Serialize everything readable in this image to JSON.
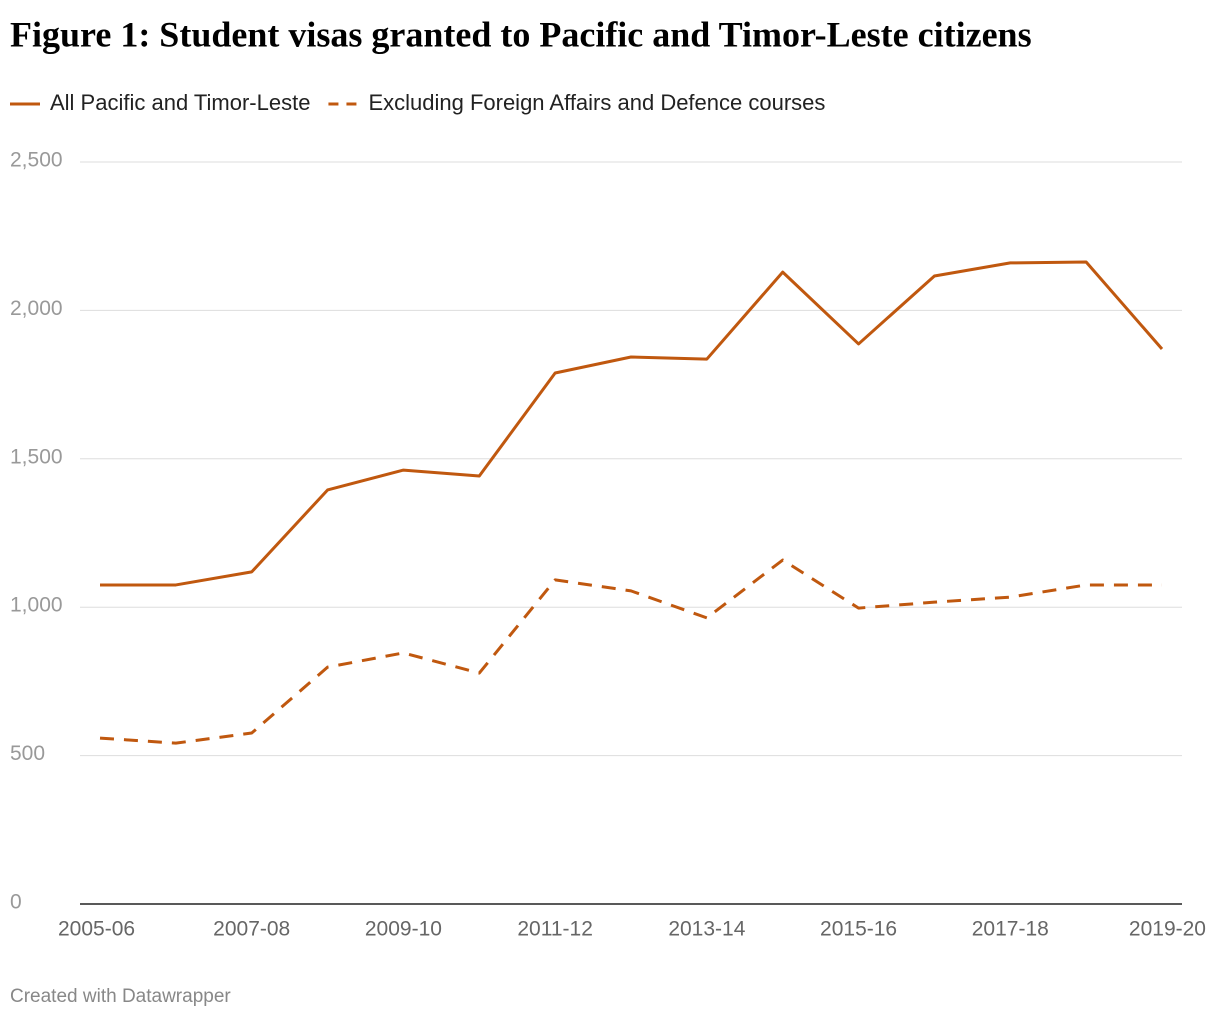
{
  "chart_data": {
    "type": "line",
    "title": "Figure 1: Student visas granted to Pacific and Timor-Leste citizens",
    "credit": "Created with Datawrapper",
    "categories": [
      "2005-06",
      null,
      "2007-08",
      null,
      "2009-10",
      null,
      "2011-12",
      null,
      "2013-14",
      null,
      "2015-16",
      null,
      "2017-18",
      null,
      "2019-20"
    ],
    "series": [
      {
        "name": "All Pacific and Timor-Leste",
        "color": "#c0580f",
        "line_style": "solid",
        "values": [
          1075,
          1075,
          1119,
          1395,
          1462,
          1442,
          1789,
          1843,
          1836,
          2129,
          1887,
          2116,
          2160,
          2163,
          1870
        ]
      },
      {
        "name": "Excluding Foreign Affairs and Defence courses",
        "color": "#c0580f",
        "line_style": "dashed",
        "values": [
          559,
          542,
          576,
          798,
          846,
          778,
          1092,
          1055,
          964,
          1159,
          997,
          1017,
          1034,
          1075,
          1075
        ]
      }
    ],
    "ylim": [
      0,
      2500
    ],
    "yticks": [
      0,
      500,
      {
        "value": 1000,
        "label": "1,000"
      },
      {
        "value": 1500,
        "label": "1,500"
      },
      {
        "value": 2000,
        "label": "2,000"
      },
      {
        "value": 2500,
        "label": "2,500"
      }
    ],
    "grid": true,
    "legend": "top-left"
  }
}
